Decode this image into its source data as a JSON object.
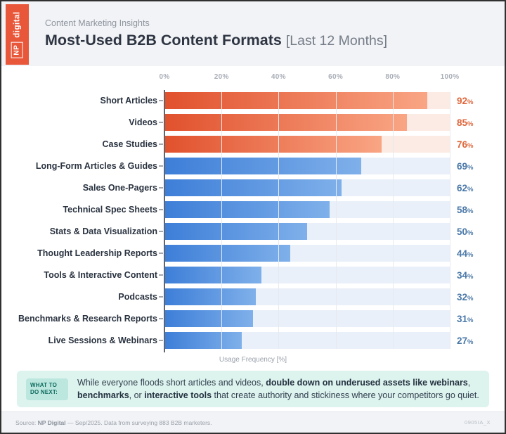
{
  "brand": {
    "logo_np": "NP",
    "logo_digital": "digital"
  },
  "header": {
    "eyebrow": "Content Marketing Insights",
    "title": "Most-Used B2B Content Formats",
    "title_suffix": "[Last 12 Months]"
  },
  "chart_data": {
    "type": "bar",
    "orientation": "horizontal",
    "title": "Most-Used B2B Content Formats [Last 12 Months]",
    "categories": [
      "Short Articles",
      "Videos",
      "Case Studies",
      "Long-Form Articles & Guides",
      "Sales One-Pagers",
      "Technical Spec Sheets",
      "Stats & Data Visualization",
      "Thought Leadership Reports",
      "Tools & Interactive Content",
      "Podcasts",
      "Benchmarks & Research Reports",
      "Live Sessions & Webinars"
    ],
    "values": [
      92,
      85,
      76,
      69,
      62,
      58,
      50,
      44,
      34,
      32,
      31,
      27
    ],
    "value_suffix": "%",
    "highlight_count": 3,
    "xlabel": "Usage Frequency [%]",
    "xticks": [
      "0%",
      "20%",
      "40%",
      "60%",
      "80%",
      "100%"
    ],
    "xtick_positions": [
      0,
      20,
      40,
      60,
      80,
      100
    ],
    "xlim": [
      0,
      100
    ],
    "grid": "vertical",
    "colors": {
      "orange_bar_start": "#e1512d",
      "orange_bar_end": "#f9a584",
      "orange_track": "#fcebe4",
      "orange_value": "#e0653a",
      "blue_bar_start": "#3d7ed8",
      "blue_bar_end": "#7fb0ea",
      "blue_track": "#e9f0f9",
      "blue_value": "#4a78a8"
    }
  },
  "note": {
    "badge": "WHAT TO DO NEXT:",
    "segments": [
      {
        "text": "While everyone floods short articles and videos, ",
        "bold": false
      },
      {
        "text": "double down on underused assets like webinars",
        "bold": true
      },
      {
        "text": ", ",
        "bold": false
      },
      {
        "text": "benchmarks",
        "bold": true
      },
      {
        "text": ", or ",
        "bold": false
      },
      {
        "text": "interactive tools",
        "bold": true
      },
      {
        "text": " that create authority and stickiness where your competitors go quiet.",
        "bold": false
      }
    ]
  },
  "footer": {
    "source_prefix": "Source: ",
    "source_brand": "NP Digital",
    "source_rest": " — Sep/2025. Data from surveying 883 B2B marketers.",
    "code": "0905IA_X"
  }
}
